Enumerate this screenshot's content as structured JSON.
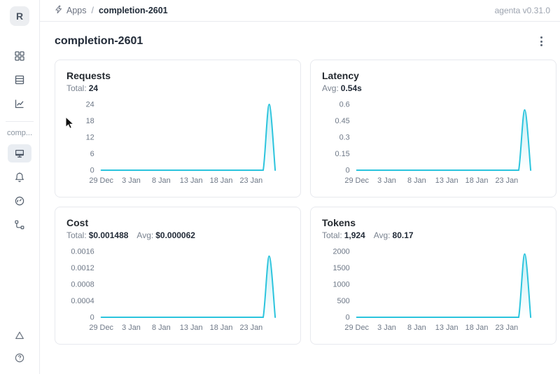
{
  "theme": {
    "chart_line": "#2bc4dd",
    "chart_area_top": "rgba(43,196,221,0.28)",
    "chart_area_bottom": "rgba(43,196,221,0)",
    "text_dark": "#1f2a37",
    "text_gray": "#6e7887",
    "card_border": "#e7e9ee",
    "selected_item_bg": "#e9edf2"
  },
  "header": {
    "workspace_initial": "R",
    "breadcrumb": {
      "app_icon": "thunderbolt-icon",
      "items": [
        "Apps",
        "completion-2601"
      ],
      "separator": "/"
    },
    "version": "agenta v0.31.0"
  },
  "sidebar": {
    "main_icons": [
      "apps-grid-icon",
      "table-list-icon",
      "line-chart-icon"
    ],
    "app_section_label": "comp...",
    "app_icons": [
      "monitor-icon",
      "bell-icon",
      "gauge-icon",
      "tree-branch-icon"
    ],
    "selected_icon": "monitor-icon",
    "footer_icons": [
      "triangle-icon",
      "help-circle-icon"
    ]
  },
  "page": {
    "title": "completion-2601",
    "menu_icon": "kebab-menu-icon"
  },
  "chart_data": [
    {
      "type": "line",
      "title": "Requests",
      "stats": [
        {
          "label": "Total:",
          "value": "24"
        }
      ],
      "x_ticks": [
        "29 Dec",
        "3 Jan",
        "8 Jan",
        "13 Jan",
        "18 Jan",
        "23 Jan"
      ],
      "x_tick_indices": [
        0,
        5,
        10,
        15,
        20,
        25
      ],
      "y_ticks": [
        "0",
        "6",
        "12",
        "18",
        "24"
      ],
      "ylim": [
        0,
        24
      ],
      "grid": false,
      "values": [
        0,
        0,
        0,
        0,
        0,
        0,
        0,
        0,
        0,
        0,
        0,
        0,
        0,
        0,
        0,
        0,
        0,
        0,
        0,
        0,
        0,
        0,
        0,
        0,
        0,
        0,
        0,
        0,
        24,
        0
      ]
    },
    {
      "type": "line",
      "title": "Latency",
      "stats": [
        {
          "label": "Avg:",
          "value": "0.54s"
        }
      ],
      "x_ticks": [
        "29 Dec",
        "3 Jan",
        "8 Jan",
        "13 Jan",
        "18 Jan",
        "23 Jan"
      ],
      "x_tick_indices": [
        0,
        5,
        10,
        15,
        20,
        25
      ],
      "y_ticks": [
        "0",
        "0.15",
        "0.3",
        "0.45",
        "0.6"
      ],
      "ylim": [
        0,
        0.6
      ],
      "grid": false,
      "values": [
        0,
        0,
        0,
        0,
        0,
        0,
        0,
        0,
        0,
        0,
        0,
        0,
        0,
        0,
        0,
        0,
        0,
        0,
        0,
        0,
        0,
        0,
        0,
        0,
        0,
        0,
        0,
        0,
        0.55,
        0
      ]
    },
    {
      "type": "line",
      "title": "Cost",
      "stats": [
        {
          "label": "Total:",
          "value": "$0.001488"
        },
        {
          "label": "Avg:",
          "value": "$0.000062"
        }
      ],
      "x_ticks": [
        "29 Dec",
        "3 Jan",
        "8 Jan",
        "13 Jan",
        "18 Jan",
        "23 Jan"
      ],
      "x_tick_indices": [
        0,
        5,
        10,
        15,
        20,
        25
      ],
      "y_ticks": [
        "0",
        "0.0004",
        "0.0008",
        "0.0012",
        "0.0016"
      ],
      "ylim": [
        0,
        0.0016
      ],
      "grid": false,
      "values": [
        0,
        0,
        0,
        0,
        0,
        0,
        0,
        0,
        0,
        0,
        0,
        0,
        0,
        0,
        0,
        0,
        0,
        0,
        0,
        0,
        0,
        0,
        0,
        0,
        0,
        0,
        0,
        0,
        0.001488,
        0
      ]
    },
    {
      "type": "line",
      "title": "Tokens",
      "stats": [
        {
          "label": "Total:",
          "value": "1,924"
        },
        {
          "label": "Avg:",
          "value": "80.17"
        }
      ],
      "x_ticks": [
        "29 Dec",
        "3 Jan",
        "8 Jan",
        "13 Jan",
        "18 Jan",
        "23 Jan"
      ],
      "x_tick_indices": [
        0,
        5,
        10,
        15,
        20,
        25
      ],
      "y_ticks": [
        "0",
        "500",
        "1000",
        "1500",
        "2000"
      ],
      "ylim": [
        0,
        2000
      ],
      "grid": false,
      "values": [
        0,
        0,
        0,
        0,
        0,
        0,
        0,
        0,
        0,
        0,
        0,
        0,
        0,
        0,
        0,
        0,
        0,
        0,
        0,
        0,
        0,
        0,
        0,
        0,
        0,
        0,
        0,
        0,
        1924,
        0
      ]
    }
  ]
}
